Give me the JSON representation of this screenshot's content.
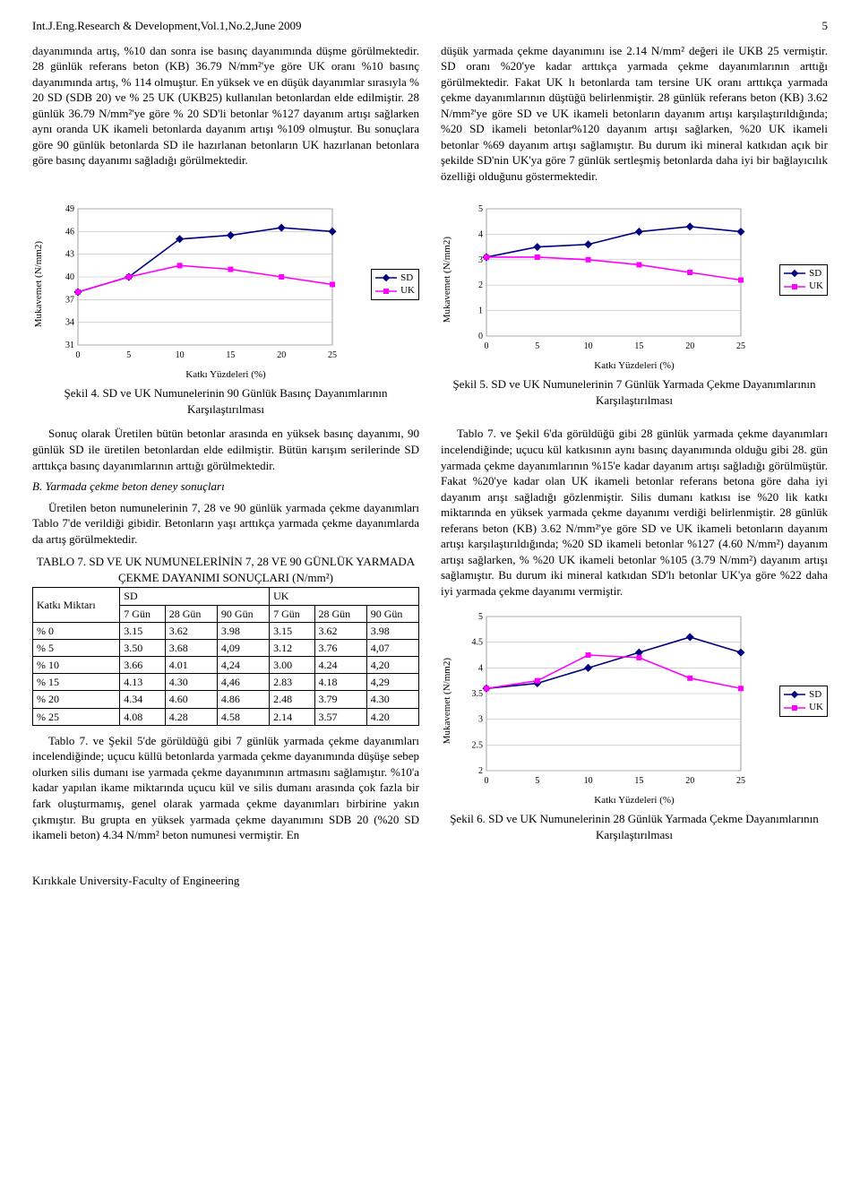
{
  "header": {
    "journal": "Int.J.Eng.Research & Development,Vol.1,No.2,June 2009",
    "page": "5"
  },
  "left_para_1": "dayanımında artış, %10 dan sonra ise basınç dayanımında düşme görülmektedir. 28 günlük referans beton (KB) 36.79 N/mm²'ye göre UK oranı %10 basınç dayanımında artış, % 114 olmuştur. En yüksek ve en düşük dayanımlar sırasıyla % 20 SD (SDB 20) ve % 25 UK (UKB25) kullanılan betonlardan elde edilmiştir. 28 günlük 36.79 N/mm²'ye göre % 20 SD'li betonlar %127 dayanım artışı sağlarken aynı oranda UK ikameli betonlarda dayanım artışı %109 olmuştur. Bu sonuçlara göre 90 günlük betonlarda SD ile hazırlanan betonların UK hazırlanan betonlara göre basınç dayanımı sağladığı görülmektedir.",
  "right_para_1": "düşük yarmada çekme dayanımını ise 2.14 N/mm² değeri ile UKB 25 vermiştir. SD oranı %20'ye kadar arttıkça yarmada çekme dayanımlarının arttığı görülmektedir. Fakat UK lı betonlarda tam tersine UK oranı arttıkça yarmada çekme dayanımlarının düştüğü belirlenmiştir. 28 günlük referans beton (KB) 3.62 N/mm²'ye göre SD ve UK ikameli betonların dayanım artışı karşılaştırıldığında; %20 SD ikameli betonlar%120 dayanım artışı sağlarken, %20 UK ikameli betonlar %69 dayanım artışı sağlamıştır. Bu durum iki mineral katkıdan açık bir şekilde SD'nin UK'ya göre 7 günlük sertleşmiş betonlarda daha iyi bir bağlayıcılık özelliği olduğunu göstermektedir.",
  "chart1": {
    "type": "line",
    "y_label": "Mukavemet (N/mm2)",
    "x_label": "Katkı Yüzdeleri (%)",
    "x_ticks": [
      0,
      5,
      10,
      15,
      20,
      25
    ],
    "y_ticks": [
      31,
      34,
      37,
      40,
      43,
      46,
      49
    ],
    "series": [
      {
        "name": "SD",
        "color": "#000080",
        "marker": "diamond",
        "data": [
          [
            0,
            38
          ],
          [
            5,
            40
          ],
          [
            10,
            45
          ],
          [
            15,
            45.5
          ],
          [
            20,
            46.5
          ],
          [
            25,
            46
          ]
        ]
      },
      {
        "name": "UK",
        "color": "#ff00ff",
        "marker": "square",
        "data": [
          [
            0,
            38
          ],
          [
            5,
            40
          ],
          [
            10,
            41.5
          ],
          [
            15,
            41
          ],
          [
            20,
            40
          ],
          [
            25,
            39
          ]
        ]
      }
    ]
  },
  "caption1": "Şekil 4. SD ve UK Numunelerinin 90 Günlük Basınç Dayanımlarının Karşılaştırılması",
  "chart2": {
    "type": "line",
    "y_label": "Mukavemet (N/mm2)",
    "x_label": "Katkı Yüzdeleri (%)",
    "x_ticks": [
      0,
      5,
      10,
      15,
      20,
      25
    ],
    "y_ticks": [
      0,
      1,
      2,
      3,
      4,
      5
    ],
    "series": [
      {
        "name": "SD",
        "color": "#000080",
        "marker": "diamond",
        "data": [
          [
            0,
            3.1
          ],
          [
            5,
            3.5
          ],
          [
            10,
            3.6
          ],
          [
            15,
            4.1
          ],
          [
            20,
            4.3
          ],
          [
            25,
            4.1
          ]
        ]
      },
      {
        "name": "UK",
        "color": "#ff00ff",
        "marker": "square",
        "data": [
          [
            0,
            3.1
          ],
          [
            5,
            3.1
          ],
          [
            10,
            3.0
          ],
          [
            15,
            2.8
          ],
          [
            20,
            2.5
          ],
          [
            25,
            2.2
          ]
        ]
      }
    ]
  },
  "caption2": "Şekil 5. SD ve UK Numunelerinin 7 Günlük Yarmada Çekme Dayanımlarının Karşılaştırılması",
  "left_para_2": "Sonuç olarak Üretilen bütün betonlar arasında en yüksek basınç dayanımı, 90 günlük SD ile üretilen betonlardan elde edilmiştir. Bütün karışım serilerinde SD arttıkça basınç dayanımlarının arttığı görülmektedir.",
  "left_sub_heading": "B. Yarmada çekme beton deney sonuçları",
  "left_para_3": "Üretilen beton numunelerinin 7, 28 ve 90 günlük yarmada çekme dayanımları Tablo 7'de verildiği gibidir. Betonların yaşı arttıkça yarmada çekme dayanımlarda da artış görülmektedir.",
  "table7": {
    "title": "TABLO 7. SD VE UK NUMUNELERİNİN 7, 28 VE 90 GÜNLÜK YARMADA ÇEKME DAYANIMI SONUÇLARI (N/mm²)",
    "head_col1": "Katkı Miktarı",
    "head_group1": "SD",
    "head_group2": "UK",
    "sub_cols": [
      "7 Gün",
      "28 Gün",
      "90 Gün",
      "7 Gün",
      "28 Gün",
      "90 Gün"
    ],
    "rows": [
      [
        "% 0",
        "3.15",
        "3.62",
        "3.98",
        "3.15",
        "3.62",
        "3.98"
      ],
      [
        "% 5",
        "3.50",
        "3.68",
        "4,09",
        "3.12",
        "3.76",
        "4,07"
      ],
      [
        "% 10",
        "3.66",
        "4.01",
        "4,24",
        "3.00",
        "4.24",
        "4,20"
      ],
      [
        "% 15",
        "4.13",
        "4.30",
        "4,46",
        "2.83",
        "4.18",
        "4,29"
      ],
      [
        "% 20",
        "4.34",
        "4.60",
        "4.86",
        "2.48",
        "3.79",
        "4.30"
      ],
      [
        "% 25",
        "4.08",
        "4.28",
        "4.58",
        "2.14",
        "3.57",
        "4.20"
      ]
    ]
  },
  "left_para_4": "Tablo 7. ve Şekil 5'de görüldüğü gibi 7 günlük yarmada çekme dayanımları incelendiğinde; uçucu küllü betonlarda yarmada çekme dayanımında düşüşe sebep olurken silis dumanı ise yarmada çekme dayanımının artmasını sağlamıştır. %10'a kadar yapılan ikame miktarında uçucu kül ve silis dumanı arasında çok fazla bir fark oluşturmamış, genel olarak yarmada çekme dayanımları birbirine yakın çıkmıştır. Bu grupta en yüksek yarmada çekme dayanımını SDB 20 (%20 SD ikameli beton) 4.34 N/mm² beton numunesi vermiştir. En",
  "right_para_2": "Tablo 7. ve Şekil 6'da görüldüğü gibi 28 günlük yarmada çekme dayanımları incelendiğinde; uçucu kül katkısının aynı basınç dayanımında olduğu gibi 28. gün yarmada çekme dayanımlarının %15'e kadar dayanım artışı sağladığı görülmüştür. Fakat %20'ye kadar olan UK ikameli betonlar referans betona göre daha iyi dayanım arışı sağladığı gözlenmiştir. Silis dumanı katkısı ise %20 lik katkı miktarında en yüksek yarmada çekme dayanımı verdiği belirlenmiştir. 28 günlük referans beton (KB) 3.62 N/mm²'ye göre SD ve UK ikameli betonların dayanım artışı karşılaştırıldığında; %20 SD ikameli betonlar %127 (4.60 N/mm²) dayanım artışı sağlarken, % %20 UK ikameli betonlar %105 (3.79 N/mm²) dayanım artışı sağlamıştır. Bu durum iki mineral katkıdan SD'lı betonlar UK'ya göre %22 daha iyi yarmada çekme dayanımı vermiştir.",
  "chart3": {
    "type": "line",
    "y_label": "Mukavemet (N/mm2)",
    "x_label": "Katkı Yüzdeleri (%)",
    "x_ticks": [
      0,
      5,
      10,
      15,
      20,
      25
    ],
    "y_ticks": [
      2,
      2.5,
      3,
      3.5,
      4,
      4.5,
      5
    ],
    "series": [
      {
        "name": "SD",
        "color": "#000080",
        "marker": "diamond",
        "data": [
          [
            0,
            3.6
          ],
          [
            5,
            3.7
          ],
          [
            10,
            4.0
          ],
          [
            15,
            4.3
          ],
          [
            20,
            4.6
          ],
          [
            25,
            4.3
          ]
        ]
      },
      {
        "name": "UK",
        "color": "#ff00ff",
        "marker": "square",
        "data": [
          [
            0,
            3.6
          ],
          [
            5,
            3.75
          ],
          [
            10,
            4.25
          ],
          [
            15,
            4.2
          ],
          [
            20,
            3.8
          ],
          [
            25,
            3.6
          ]
        ]
      }
    ]
  },
  "caption3": "Şekil 6. SD ve UK Numunelerinin 28 Günlük Yarmada Çekme Dayanımlarının Karşılaştırılması",
  "legend_labels": {
    "sd": "SD",
    "uk": "UK"
  },
  "footer": "Kırıkkale University-Faculty of Engineering"
}
